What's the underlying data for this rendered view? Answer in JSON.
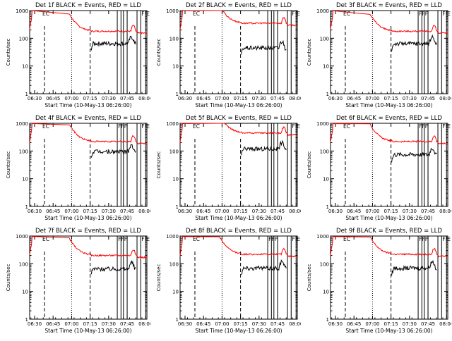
{
  "chart_data": {
    "type": "line",
    "x_axis_label": "Start Time (10-May-13 06:26:00)",
    "x_tick_labels": [
      "06:30",
      "06:45",
      "07:00",
      "07:15",
      "07:30",
      "07:45",
      "08:00"
    ],
    "x_range_minutes": [
      0,
      95
    ],
    "y_axis_label": "Counts/sec",
    "y_scale": "log",
    "y_range": [
      1,
      1000
    ],
    "y_tick_labels": [
      "1",
      "10",
      "100",
      "1000"
    ],
    "colors": {
      "events": "#000000",
      "lld": "#ff0000"
    },
    "panels": [
      {
        "title": "Det 1f BLACK = Events, RED = LLD",
        "labels": [
          "EC",
          "F",
          "E"
        ],
        "events_level": 65,
        "lld_level": 180,
        "bursts_min": [
          71,
          74,
          76,
          79,
          87,
          90,
          94
        ]
      },
      {
        "title": "Det 2f BLACK = Events, RED = LLD",
        "labels": [
          "EC",
          "F",
          "E"
        ],
        "events_level": 45,
        "lld_level": 350,
        "bursts_min": [
          71,
          74,
          76,
          79,
          87,
          90,
          94
        ]
      },
      {
        "title": "Det 3f BLACK = Events, RED = LLD",
        "labels": [
          "EC",
          "FFF",
          "F",
          "E"
        ],
        "events_level": 65,
        "lld_level": 180,
        "bursts_min": [
          71,
          74,
          76,
          79,
          87,
          90,
          94
        ]
      },
      {
        "title": "Det 4f BLACK = Events, RED = LLD",
        "labels": [
          "EC",
          "FFF",
          "F",
          "E"
        ],
        "events_level": 95,
        "lld_level": 220,
        "bursts_min": [
          71,
          74,
          76,
          79,
          87,
          90,
          94
        ]
      },
      {
        "title": "Det 5f BLACK = Events, RED = LLD",
        "labels": [
          "EC",
          "F",
          "E"
        ],
        "events_level": 120,
        "lld_level": 450,
        "bursts_min": [
          71,
          74,
          76,
          79,
          87,
          90,
          94
        ]
      },
      {
        "title": "Det 6f BLACK = Events, RED = LLD",
        "labels": [
          "EC",
          "FFF",
          "F",
          "E"
        ],
        "events_level": 75,
        "lld_level": 220,
        "bursts_min": [
          71,
          74,
          76,
          79,
          87,
          90,
          94
        ]
      },
      {
        "title": "Det 7f BLACK = Events, RED = LLD",
        "labels": [
          "EC",
          "FFF",
          "F",
          "E"
        ],
        "events_level": 65,
        "lld_level": 200,
        "bursts_min": [
          71,
          74,
          76,
          79,
          87,
          90,
          94
        ]
      },
      {
        "title": "Det 8f BLACK = Events, RED = LLD",
        "labels": [
          "EC",
          "FFF",
          "F",
          "E"
        ],
        "events_level": 70,
        "lld_level": 220,
        "bursts_min": [
          71,
          74,
          76,
          79,
          87,
          90,
          94
        ]
      },
      {
        "title": "Det 9f BLACK = Events, RED = LLD",
        "labels": [
          "EC",
          "FFF",
          "F",
          "E"
        ],
        "events_level": 70,
        "lld_level": 220,
        "bursts_min": [
          71,
          74,
          76,
          79,
          87,
          90,
          94
        ]
      }
    ]
  }
}
